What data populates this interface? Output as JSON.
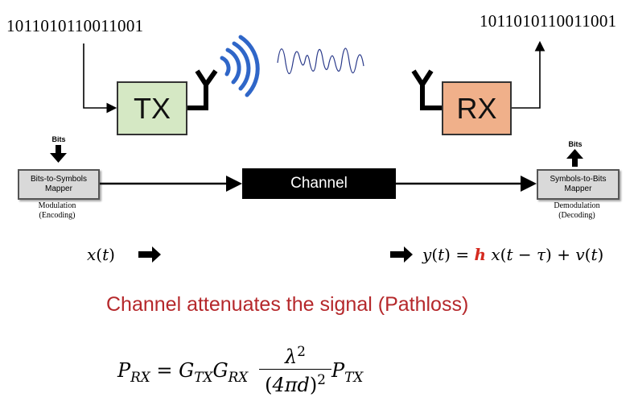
{
  "tx": {
    "bits": "1011010110011001",
    "label": "TX"
  },
  "rx": {
    "bits": "1011010110011001",
    "label": "RX"
  },
  "tx_mapper": {
    "top_label": "Bits",
    "line1": "Bits-to-Symbols",
    "line2": "Mapper",
    "caption1": "Modulation",
    "caption2": "(Encoding)"
  },
  "rx_mapper": {
    "top_label": "Bits",
    "line1": "Symbols-to-Bits",
    "line2": "Mapper",
    "caption1": "Demodulation",
    "caption2": "(Decoding)"
  },
  "channel": {
    "label": "Channel"
  },
  "equations": {
    "input": {
      "x": "x",
      "t": "t"
    },
    "output": {
      "lhs_y": "y",
      "lhs_t": "t",
      "h": "h",
      "x": "x",
      "arg": "t − τ",
      "noise": "v",
      "noise_t": "t"
    },
    "pathloss": {
      "P": "P",
      "P_sub": "RX",
      "G1": "G",
      "G1_sub": "TX",
      "G2": "G",
      "G2_sub": "RX",
      "num_base": "λ",
      "num_exp": "2",
      "den_inner": "4πd",
      "den_exp": "2",
      "P2": "P",
      "P2_sub": "TX"
    }
  },
  "headline": "Channel attenuates the signal (Pathloss)",
  "colors": {
    "tx_fill": "#d5e8c4",
    "rx_fill": "#f0b08a",
    "channel_fill": "#000000",
    "accent_red": "#d42a20",
    "wave_blue": "#2f66c8",
    "headline": "#b5282b"
  }
}
